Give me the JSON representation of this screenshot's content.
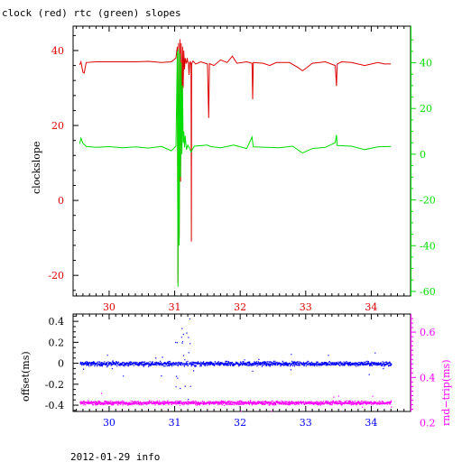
{
  "title": "clock (red) rtc (green) slopes",
  "footer": "2012-01-29 info",
  "colors": {
    "red": "#dd0000",
    "green": "#00dd00",
    "blue": "#0000ff",
    "magenta": "#ff00ff",
    "axis": "#000000"
  },
  "chart_data": [
    {
      "type": "line",
      "ylabel": "clockslope",
      "xlim": [
        29.45,
        34.6
      ],
      "xticks": [
        "30",
        "31",
        "32",
        "33",
        "34"
      ],
      "ylim": [
        -25.5,
        46.5
      ],
      "yticks": [
        "-20",
        "0",
        "20",
        "40"
      ],
      "ylim_right": [
        -62,
        56
      ],
      "yticks_right": [
        "-60",
        "-40",
        "-20",
        "0",
        "20",
        "40"
      ],
      "series": [
        {
          "color": "red",
          "axis": "left",
          "points": [
            [
              29.55,
              36.2
            ],
            [
              29.57,
              37.0
            ],
            [
              29.6,
              34.2
            ],
            [
              29.62,
              34.0
            ],
            [
              29.65,
              36.8
            ],
            [
              29.8,
              37.0
            ],
            [
              30.0,
              37.0
            ],
            [
              30.2,
              37.0
            ],
            [
              30.4,
              37.0
            ],
            [
              30.6,
              37.1
            ],
            [
              30.8,
              36.8
            ],
            [
              30.95,
              37.0
            ],
            [
              31.02,
              38.0
            ],
            [
              31.04,
              41.0
            ],
            [
              31.05,
              -22.0
            ],
            [
              31.06,
              42.0
            ],
            [
              31.07,
              -10.0
            ],
            [
              31.08,
              43.0
            ],
            [
              31.09,
              5.0
            ],
            [
              31.1,
              42.0
            ],
            [
              31.11,
              20.0
            ],
            [
              31.12,
              41.0
            ],
            [
              31.13,
              30.0
            ],
            [
              31.14,
              40.0
            ],
            [
              31.15,
              35.0
            ],
            [
              31.16,
              38.0
            ],
            [
              31.17,
              37.0
            ],
            [
              31.18,
              36.5
            ],
            [
              31.19,
              38.0
            ],
            [
              31.2,
              37.0
            ],
            [
              31.21,
              36.8
            ],
            [
              31.22,
              33.5
            ],
            [
              31.23,
              36.8
            ],
            [
              31.24,
              37.0
            ],
            [
              31.25,
              36.0
            ],
            [
              31.255,
              -11.0
            ],
            [
              31.26,
              36.5
            ],
            [
              31.28,
              37.2
            ],
            [
              31.32,
              36.4
            ],
            [
              31.4,
              37.0
            ],
            [
              31.5,
              36.4
            ],
            [
              31.52,
              22.0
            ],
            [
              31.53,
              36.5
            ],
            [
              31.6,
              36.0
            ],
            [
              31.7,
              37.5
            ],
            [
              31.8,
              36.8
            ],
            [
              31.88,
              38.5
            ],
            [
              31.95,
              36.6
            ],
            [
              32.1,
              37.0
            ],
            [
              32.18,
              36.6
            ],
            [
              32.19,
              27.0
            ],
            [
              32.2,
              36.8
            ],
            [
              32.35,
              36.6
            ],
            [
              32.45,
              36.0
            ],
            [
              32.55,
              36.8
            ],
            [
              32.75,
              36.8
            ],
            [
              32.88,
              35.5
            ],
            [
              32.95,
              34.6
            ],
            [
              33.0,
              35.2
            ],
            [
              33.1,
              36.6
            ],
            [
              33.3,
              37.0
            ],
            [
              33.45,
              36.0
            ],
            [
              33.47,
              30.5
            ],
            [
              33.48,
              36.4
            ],
            [
              33.55,
              37.0
            ],
            [
              33.7,
              36.8
            ],
            [
              33.9,
              36.0
            ],
            [
              34.1,
              36.8
            ],
            [
              34.2,
              36.4
            ],
            [
              34.3,
              36.4
            ]
          ]
        },
        {
          "color": "green",
          "axis": "right",
          "points": [
            [
              29.55,
              4.5
            ],
            [
              29.57,
              7.0
            ],
            [
              29.6,
              4.8
            ],
            [
              29.65,
              3.4
            ],
            [
              29.8,
              3.0
            ],
            [
              30.0,
              3.3
            ],
            [
              30.2,
              2.8
            ],
            [
              30.4,
              3.2
            ],
            [
              30.6,
              2.7
            ],
            [
              30.8,
              3.4
            ],
            [
              30.95,
              1.5
            ],
            [
              31.02,
              3.5
            ],
            [
              31.04,
              45.0
            ],
            [
              31.05,
              -58.0
            ],
            [
              31.06,
              46.0
            ],
            [
              31.07,
              -40.0
            ],
            [
              31.08,
              44.0
            ],
            [
              31.09,
              -10.0
            ],
            [
              31.1,
              40.0
            ],
            [
              31.11,
              0.0
            ],
            [
              31.12,
              30.0
            ],
            [
              31.13,
              5.0
            ],
            [
              31.14,
              10.0
            ],
            [
              31.15,
              3.0
            ],
            [
              31.16,
              8.0
            ],
            [
              31.18,
              2.0
            ],
            [
              31.2,
              4.0
            ],
            [
              31.22,
              3.0
            ],
            [
              31.25,
              1.0
            ],
            [
              31.3,
              3.5
            ],
            [
              31.5,
              4.0
            ],
            [
              31.55,
              3.3
            ],
            [
              31.7,
              2.8
            ],
            [
              31.9,
              4.0
            ],
            [
              32.1,
              2.5
            ],
            [
              32.18,
              7.5
            ],
            [
              32.2,
              3.2
            ],
            [
              32.4,
              3.0
            ],
            [
              32.6,
              2.8
            ],
            [
              32.8,
              3.5
            ],
            [
              32.95,
              0.5
            ],
            [
              33.1,
              2.5
            ],
            [
              33.3,
              3.0
            ],
            [
              33.45,
              5.0
            ],
            [
              33.47,
              8.5
            ],
            [
              33.48,
              3.8
            ],
            [
              33.7,
              3.5
            ],
            [
              33.9,
              2.0
            ],
            [
              34.1,
              3.2
            ],
            [
              34.3,
              3.4
            ]
          ]
        }
      ]
    },
    {
      "type": "scatter",
      "ylabel": "offset(ms)",
      "ylabel_right": "rnd−trip(ms)",
      "xlim": [
        29.45,
        34.6
      ],
      "xticks": [
        "30",
        "31",
        "32",
        "33",
        "34"
      ],
      "ylim": [
        -0.46,
        0.47
      ],
      "yticks": [
        "-0.4",
        "-0.2",
        "0",
        "0.2",
        "0.4"
      ],
      "ylim_right": [
        0.25,
        0.68
      ],
      "yticks_right": [
        "0.2",
        "0.4",
        "0.6"
      ],
      "series": [
        {
          "color": "blue",
          "axis": "left",
          "x_range": [
            29.55,
            34.3
          ],
          "baseline": 0.0,
          "spread": 0.03,
          "outlier_band": [
            31.0,
            31.25
          ],
          "outlier_spread": 0.45
        },
        {
          "color": "magenta",
          "axis": "right",
          "x_range": [
            29.55,
            34.3
          ],
          "baseline": 0.29,
          "spread": 0.012
        }
      ]
    }
  ]
}
